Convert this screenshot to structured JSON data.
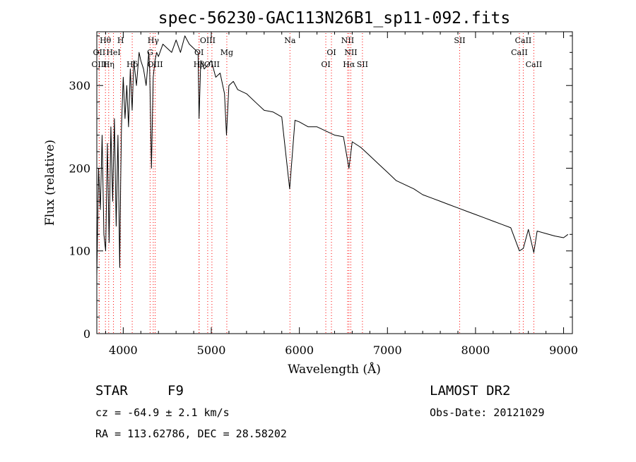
{
  "chart_data": {
    "type": "line",
    "title": "spec-56230-GAC113N26B1_sp11-092.fits",
    "xlabel": "Wavelength (Å)",
    "ylabel": "Flux (relative)",
    "xlim": [
      3700,
      9100
    ],
    "ylim": [
      0,
      365
    ],
    "x_ticks": [
      4000,
      5000,
      6000,
      7000,
      8000,
      9000
    ],
    "y_ticks": [
      0,
      100,
      200,
      300
    ],
    "grid": false,
    "series": [
      {
        "x": [
          3700,
          3720,
          3740,
          3760,
          3780,
          3800,
          3820,
          3840,
          3860,
          3880,
          3900,
          3920,
          3940,
          3960,
          3970,
          3980,
          4000,
          4020,
          4040,
          4060,
          4080,
          4101,
          4120,
          4150,
          4180,
          4200,
          4230,
          4260,
          4290,
          4300,
          4320,
          4340,
          4360,
          4380,
          4400,
          4450,
          4500,
          4550,
          4600,
          4650,
          4700,
          4750,
          4800,
          4850,
          4861,
          4880,
          4920,
          4960,
          5000,
          5050,
          5100,
          5150,
          5172,
          5200,
          5250,
          5300,
          5400,
          5500,
          5600,
          5700,
          5800,
          5890,
          5950,
          6000,
          6100,
          6200,
          6300,
          6400,
          6500,
          6563,
          6600,
          6700,
          6800,
          6900,
          7000,
          7100,
          7200,
          7300,
          7400,
          7500,
          7600,
          7700,
          7800,
          7900,
          8000,
          8100,
          8200,
          8300,
          8400,
          8498,
          8542,
          8600,
          8662,
          8700,
          8800,
          8900,
          9000,
          9050
        ],
        "y": [
          70,
          200,
          150,
          240,
          120,
          100,
          230,
          110,
          250,
          160,
          260,
          130,
          240,
          80,
          180,
          250,
          310,
          260,
          300,
          250,
          320,
          270,
          330,
          300,
          340,
          330,
          320,
          300,
          340,
          320,
          200,
          310,
          330,
          340,
          335,
          350,
          345,
          340,
          355,
          340,
          360,
          350,
          345,
          340,
          260,
          330,
          320,
          325,
          330,
          310,
          315,
          290,
          240,
          300,
          305,
          295,
          290,
          280,
          270,
          268,
          262,
          175,
          258,
          256,
          250,
          250,
          245,
          240,
          238,
          200,
          232,
          225,
          215,
          205,
          195,
          185,
          180,
          175,
          168,
          164,
          160,
          156,
          152,
          148,
          144,
          140,
          136,
          132,
          128,
          100,
          103,
          126,
          98,
          124,
          121,
          118,
          116,
          120
        ]
      }
    ],
    "lines": [
      {
        "label": "Hθ",
        "x": 3798,
        "row": 0
      },
      {
        "label": "H",
        "x": 3970,
        "row": 0
      },
      {
        "label": "Hγ",
        "x": 4341,
        "row": 0
      },
      {
        "label": "OIII",
        "x": 4959,
        "row": 0
      },
      {
        "label": "Na",
        "x": 5893,
        "row": 0
      },
      {
        "label": "NII",
        "x": 6548,
        "row": 0
      },
      {
        "label": "SII",
        "x": 7820,
        "row": 0
      },
      {
        "label": "CaII",
        "x": 8542,
        "row": 0
      },
      {
        "label": "OII",
        "x": 3727,
        "row": 1
      },
      {
        "label": "HeI",
        "x": 3889,
        "row": 1
      },
      {
        "label": "G",
        "x": 4305,
        "row": 1
      },
      {
        "label": "OI",
        "x": 4861,
        "row": 1
      },
      {
        "label": "Mg",
        "x": 5176,
        "row": 1
      },
      {
        "label": "OI",
        "x": 6364,
        "row": 1
      },
      {
        "label": "NII",
        "x": 6584,
        "row": 1
      },
      {
        "label": "CaII",
        "x": 8498,
        "row": 1
      },
      {
        "label": "OIII",
        "x": 3727,
        "row": 2
      },
      {
        "label": "Hη",
        "x": 3835,
        "row": 2
      },
      {
        "label": "Hδ",
        "x": 4102,
        "row": 2
      },
      {
        "label": "OIII",
        "x": 4363,
        "row": 2
      },
      {
        "label": "Hβ",
        "x": 4861,
        "row": 2
      },
      {
        "label": "OIII",
        "x": 5007,
        "row": 2
      },
      {
        "label": "OI",
        "x": 6300,
        "row": 2
      },
      {
        "label": "Hα",
        "x": 6563,
        "row": 2
      },
      {
        "label": "SII",
        "x": 6716,
        "row": 2
      },
      {
        "label": "CaII",
        "x": 8662,
        "row": 2
      }
    ],
    "line_color": "#ff0000",
    "series_color": "#000000"
  },
  "info": {
    "object_type": "STAR",
    "subclass": "F9",
    "release": "LAMOST DR2",
    "cz": "cz = -64.9 ± 2.1 km/s",
    "obs_date": "Obs-Date: 20121029",
    "coords": "RA = 113.62786, DEC =  28.58202"
  }
}
